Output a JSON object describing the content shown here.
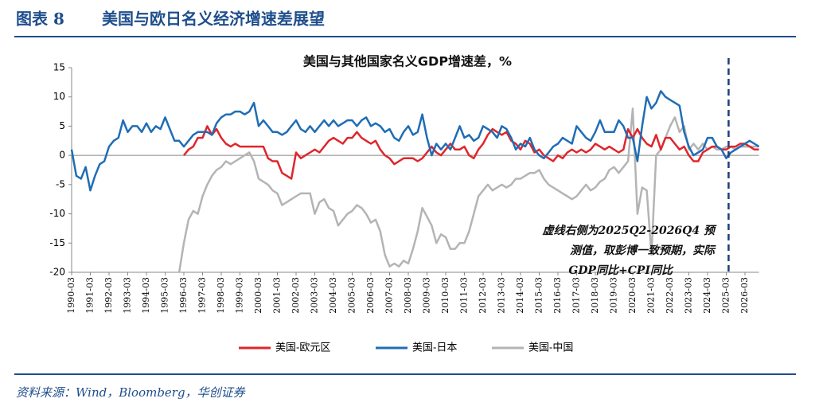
{
  "header": {
    "label": "图表 8",
    "title": "美国与欧日名义经济增速差展望"
  },
  "source": "资料来源：Wind，Bloomberg，华创证券",
  "chart_data": {
    "type": "line",
    "title": "美国与其他国家名义GDP增速差，%",
    "annotation": [
      "虚线右侧为2025Q2-2026Q4 预",
      "测值，取彭博一致预期，实际",
      "GDP同比+CPI同比"
    ],
    "categories": [
      "1990-03",
      null,
      null,
      null,
      "1991-03",
      null,
      null,
      null,
      "1992-03",
      null,
      null,
      null,
      "1993-03",
      null,
      null,
      null,
      "1994-03",
      null,
      null,
      null,
      "1995-03",
      null,
      null,
      null,
      "1996-03",
      null,
      null,
      null,
      "1997-03",
      null,
      null,
      null,
      "1998-03",
      null,
      null,
      null,
      "1999-03",
      null,
      null,
      null,
      "2000-03",
      null,
      null,
      null,
      "2001-03",
      null,
      null,
      null,
      "2002-03",
      null,
      null,
      null,
      "2003-03",
      null,
      null,
      null,
      "2004-03",
      null,
      null,
      null,
      "2005-03",
      null,
      null,
      null,
      "2006-03",
      null,
      null,
      null,
      "2007-03",
      null,
      null,
      null,
      "2008-03",
      null,
      null,
      null,
      "2009-03",
      null,
      null,
      null,
      "2010-03",
      null,
      null,
      null,
      "2011-03",
      null,
      null,
      null,
      "2012-03",
      null,
      null,
      null,
      "2013-03",
      null,
      null,
      null,
      "2014-03",
      null,
      null,
      null,
      "2015-03",
      null,
      null,
      null,
      "2016-03",
      null,
      null,
      null,
      "2017-03",
      null,
      null,
      null,
      "2018-03",
      null,
      null,
      null,
      "2019-03",
      null,
      null,
      null,
      "2020-03",
      null,
      null,
      null,
      "2021-03",
      null,
      null,
      null,
      "2022-03",
      null,
      null,
      null,
      "2023-03",
      null,
      null,
      null,
      "2024-03",
      null,
      null,
      null,
      "2025-03",
      null,
      null,
      null,
      "2026-03",
      null,
      null,
      null
    ],
    "series": [
      {
        "name": "美国-欧元区",
        "color": "#e0252b",
        "values": [
          null,
          null,
          null,
          null,
          null,
          null,
          null,
          null,
          null,
          null,
          null,
          null,
          null,
          null,
          null,
          null,
          null,
          null,
          null,
          null,
          null,
          null,
          null,
          null,
          0,
          1,
          1.5,
          3,
          3,
          5,
          3.5,
          4.5,
          3,
          2,
          1.5,
          2,
          1.5,
          1.5,
          1.5,
          1.5,
          1.5,
          1.5,
          -0.5,
          -1,
          -1,
          -3,
          -3.5,
          -4,
          0.5,
          -0.5,
          0,
          0.5,
          1,
          0.5,
          1.5,
          2.5,
          3,
          2.5,
          2,
          3,
          3,
          4,
          3,
          2.5,
          2,
          2.5,
          1,
          0,
          -0.5,
          -1.5,
          -1,
          -0.5,
          -0.5,
          -0.5,
          -1,
          -0.5,
          0.5,
          1.5,
          0.5,
          0,
          1,
          2,
          1,
          1,
          1.5,
          0,
          -0.5,
          1,
          2,
          3.5,
          4.5,
          4,
          3.5,
          4,
          2.5,
          2,
          1,
          2.5,
          2,
          0.5,
          1,
          0,
          -0.5,
          -1,
          0,
          -0.5,
          0.5,
          1,
          0.5,
          1,
          0.5,
          1,
          2,
          1.5,
          1,
          1.5,
          1,
          0.5,
          1,
          4.5,
          3,
          4.5,
          3,
          2,
          1.5,
          3.5,
          1,
          3,
          3,
          2,
          1,
          1.5,
          0,
          -1,
          -1,
          0.5,
          1,
          1.5,
          1.5,
          1,
          1,
          1.5,
          1.5,
          2,
          2,
          1.5,
          1,
          1
        ]
      },
      {
        "name": "美国-日本",
        "color": "#1f6db5",
        "values": [
          1,
          -3.5,
          -4,
          -2,
          -6,
          -3.5,
          -1.5,
          -1,
          1.5,
          2.5,
          3,
          6,
          4,
          5,
          5,
          4,
          5.5,
          4,
          5,
          4.5,
          6.5,
          4.5,
          2.5,
          2.5,
          1.5,
          2.5,
          3.5,
          4,
          4,
          4,
          3.5,
          5.5,
          6.5,
          7,
          7,
          7.5,
          7.5,
          7,
          7.5,
          9,
          5,
          6,
          5,
          4,
          4,
          3.5,
          4,
          5,
          6,
          4.5,
          4,
          5,
          4,
          5,
          6,
          5,
          6,
          5,
          5.5,
          6,
          6,
          5,
          6,
          6.5,
          5,
          5.5,
          5,
          4,
          4.5,
          3,
          2.5,
          4,
          5,
          3.5,
          4,
          7,
          3,
          0,
          2,
          1,
          2,
          1,
          3,
          5,
          3,
          3.5,
          2.5,
          3,
          5,
          4.5,
          4,
          3,
          5,
          4.5,
          3,
          1,
          2,
          1.5,
          3,
          1,
          0,
          -0.5,
          0.5,
          1.5,
          2,
          3,
          2.5,
          2,
          5,
          4,
          3,
          2.5,
          4,
          6,
          4,
          4,
          4,
          6,
          5,
          3,
          3,
          -1,
          5,
          10,
          8,
          9,
          11,
          10,
          9.5,
          9,
          8.5,
          4,
          1.5,
          0,
          0.5,
          1,
          3,
          3,
          1.5,
          1,
          -0.5,
          0.5,
          1,
          1.5,
          2,
          2.5,
          2,
          1.5
        ]
      },
      {
        "name": "美国-中国",
        "color": "#b4b4b4",
        "values": [
          null,
          null,
          null,
          null,
          null,
          null,
          null,
          null,
          null,
          null,
          null,
          null,
          null,
          null,
          null,
          null,
          null,
          null,
          null,
          null,
          null,
          null,
          null,
          -20,
          -15,
          -11,
          -9.5,
          -10,
          -7,
          -5,
          -3.5,
          -2.5,
          -2,
          -1,
          -1.5,
          -1,
          -0.5,
          0,
          0.5,
          -1,
          -4,
          -4.5,
          -5,
          -6,
          -6.5,
          -8.5,
          -8,
          -7.5,
          -7,
          -6.5,
          -6.5,
          -6.5,
          -10,
          -8,
          -7.5,
          -9,
          -9.5,
          -12,
          -11,
          -10,
          -9.5,
          -8.5,
          -9,
          -10,
          -11.5,
          -11,
          -13,
          -17,
          -19,
          -18.5,
          -19,
          -18,
          -18.5,
          -16,
          -13,
          -9,
          -10.5,
          -12,
          -15,
          -13.5,
          -14,
          -16,
          -16,
          -15,
          -15,
          -13,
          -10,
          -7,
          -6,
          -5,
          -6,
          -5.5,
          -5,
          -5.5,
          -5,
          -4,
          -4,
          -3.5,
          -3,
          -3,
          -2.5,
          -4,
          -5,
          -5.5,
          -6,
          -6.5,
          -7,
          -7.5,
          -7,
          -6,
          -5,
          -6,
          -5.5,
          -4.5,
          -4,
          -2.5,
          -2,
          -3,
          -2,
          -1,
          8,
          -10,
          -5.5,
          -6,
          -17,
          0,
          1,
          3,
          5,
          6.5,
          4,
          5,
          1,
          2,
          1,
          2,
          1,
          1.5,
          1,
          1,
          1.5,
          1.5,
          1,
          1.5,
          1.5,
          1.5,
          1.5,
          1.5
        ]
      }
    ],
    "ylim": [
      -20,
      15
    ],
    "yticks": [
      15,
      10,
      5,
      0,
      -5,
      -10,
      -15,
      -20
    ],
    "grid": false,
    "legend": "bottom"
  }
}
